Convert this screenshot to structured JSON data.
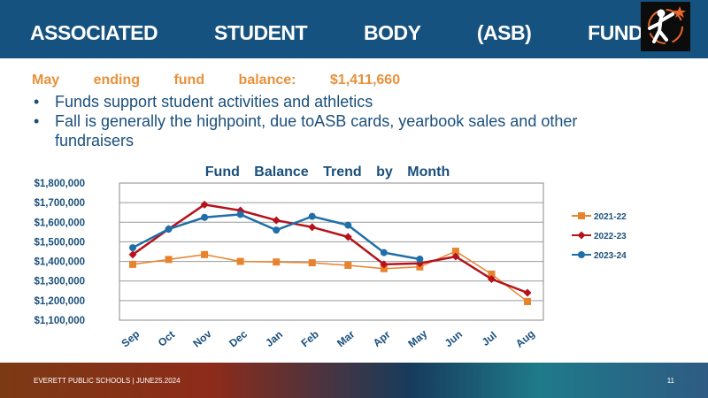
{
  "header": {
    "title": "ASSOCIATED STUDENT BODY (ASB) FUND"
  },
  "summary": {
    "balance_line": "May ending fund balance: $1,411,660",
    "bullets": [
      "Funds support student activities and athletics",
      "Fall is generally the highpoint, due toASB cards, yearbook sales and other fundraisers"
    ]
  },
  "chart_data": {
    "type": "line",
    "title": "Fund Balance Trend by Month",
    "xlabel": "",
    "ylabel": "",
    "categories": [
      "Sep",
      "Oct",
      "Nov",
      "Dec",
      "Jan",
      "Feb",
      "Mar",
      "Apr",
      "May",
      "Jun",
      "Jul",
      "Aug"
    ],
    "ylim": [
      1100000,
      1800000
    ],
    "yticks": [
      "$1,100,000",
      "$1,200,000",
      "$1,300,000",
      "$1,400,000",
      "$1,500,000",
      "$1,600,000",
      "$1,700,000",
      "$1,800,000"
    ],
    "grid": true,
    "legend_position": "right",
    "series": [
      {
        "name": "2021-22",
        "color": "#e8832d",
        "marker": "square",
        "values": [
          1385000,
          1410000,
          1435000,
          1400000,
          1397000,
          1393000,
          1380000,
          1363000,
          1372000,
          1452000,
          1335000,
          1195000
        ]
      },
      {
        "name": "2022-23",
        "color": "#b5121b",
        "marker": "diamond",
        "values": [
          1435000,
          1565000,
          1690000,
          1660000,
          1610000,
          1575000,
          1525000,
          1385000,
          1390000,
          1425000,
          1310000,
          1240000
        ]
      },
      {
        "name": "2023-24",
        "color": "#1f6fa8",
        "marker": "circle",
        "values": [
          1470000,
          1565000,
          1625000,
          1640000,
          1560000,
          1630000,
          1585000,
          1445000,
          1411660,
          null,
          null,
          null
        ]
      }
    ]
  },
  "footer": {
    "text": "EVERETT PUBLIC SCHOOLS | JUNE25.2024",
    "page": "11"
  },
  "logo": {
    "icon": "star-figure-logo-icon",
    "accent": "#e8672a"
  }
}
